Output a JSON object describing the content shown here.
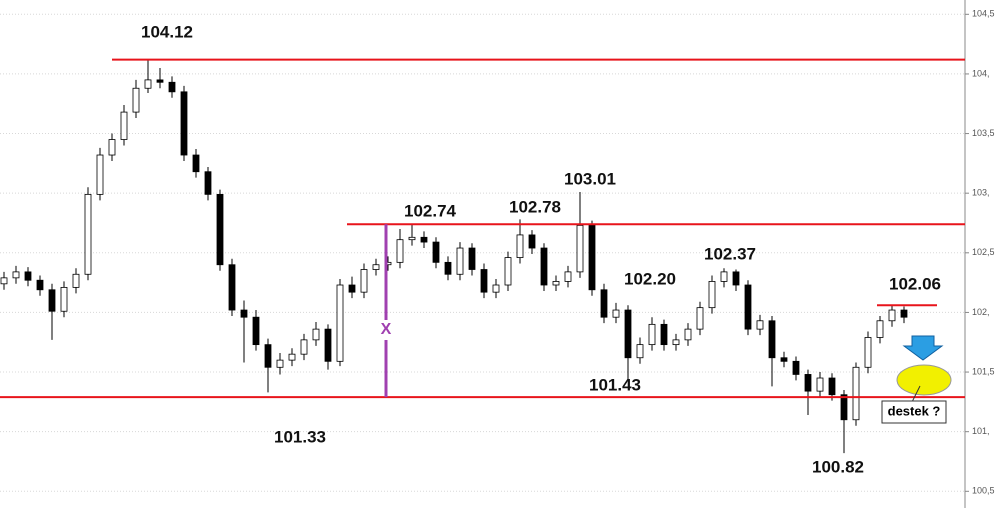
{
  "chart_data": {
    "type": "candlestick",
    "open": [
      102.24,
      102.29,
      102.34,
      102.27,
      102.19,
      102.01,
      102.21,
      102.32,
      102.99,
      103.32,
      103.45,
      103.68,
      103.88,
      103.95,
      103.93,
      103.85,
      103.32,
      103.18,
      102.99,
      102.4,
      102.02,
      101.96,
      101.73,
      101.54,
      101.6,
      101.65,
      101.77,
      101.86,
      101.59,
      102.23,
      102.17,
      102.36,
      102.4,
      102.42,
      102.61,
      102.63,
      102.59,
      102.42,
      102.32,
      102.54,
      102.36,
      102.17,
      102.23,
      102.46,
      102.65,
      102.54,
      102.23,
      102.26,
      102.34,
      102.73,
      102.19,
      101.96,
      102.02,
      101.62,
      101.73,
      101.9,
      101.73,
      101.77,
      101.86,
      102.04,
      102.26,
      102.34,
      102.23,
      101.86,
      101.93,
      101.62,
      101.59,
      101.48,
      101.34,
      101.45,
      101.31,
      101.1,
      101.54,
      101.79,
      101.93,
      102.02
    ],
    "high": [
      102.34,
      102.39,
      102.38,
      102.31,
      102.24,
      102.26,
      102.37,
      103.05,
      103.38,
      103.5,
      103.74,
      103.95,
      104.12,
      104.05,
      103.98,
      103.9,
      103.37,
      103.22,
      103.03,
      102.45,
      102.1,
      102.02,
      101.78,
      101.66,
      101.7,
      101.82,
      101.92,
      101.9,
      102.28,
      102.3,
      102.41,
      102.45,
      102.47,
      102.7,
      102.74,
      102.68,
      102.63,
      102.47,
      102.59,
      102.58,
      102.41,
      102.28,
      102.51,
      102.78,
      102.69,
      102.58,
      102.31,
      102.39,
      103.01,
      102.77,
      102.24,
      102.08,
      102.06,
      101.79,
      101.96,
      101.94,
      101.82,
      101.91,
      102.09,
      102.31,
      102.37,
      102.36,
      102.27,
      101.98,
      101.97,
      101.67,
      101.63,
      101.52,
      101.5,
      101.49,
      101.35,
      101.58,
      101.84,
      101.97,
      102.06,
      102.05
    ],
    "low": [
      102.19,
      102.24,
      102.22,
      102.14,
      101.77,
      101.96,
      102.16,
      102.27,
      102.94,
      103.27,
      103.4,
      103.63,
      103.84,
      103.88,
      103.8,
      103.27,
      103.13,
      102.94,
      102.35,
      101.97,
      101.58,
      101.68,
      101.33,
      101.48,
      101.55,
      101.6,
      101.72,
      101.52,
      101.55,
      102.12,
      102.12,
      102.31,
      102.35,
      102.37,
      102.56,
      102.54,
      102.37,
      102.27,
      102.27,
      102.31,
      102.12,
      102.12,
      102.18,
      102.41,
      102.49,
      102.18,
      102.18,
      102.21,
      102.29,
      102.14,
      101.91,
      101.91,
      101.43,
      101.57,
      101.68,
      101.68,
      101.68,
      101.72,
      101.81,
      101.99,
      102.21,
      102.18,
      101.81,
      101.81,
      101.38,
      101.54,
      101.43,
      101.14,
      101.29,
      101.26,
      100.82,
      101.05,
      101.49,
      101.74,
      101.88,
      101.91
    ],
    "close": [
      102.29,
      102.34,
      102.27,
      102.19,
      102.01,
      102.21,
      102.32,
      102.99,
      103.32,
      103.45,
      103.68,
      103.88,
      103.95,
      103.93,
      103.85,
      103.32,
      103.18,
      102.99,
      102.4,
      102.02,
      101.96,
      101.73,
      101.54,
      101.6,
      101.65,
      101.77,
      101.86,
      101.59,
      102.23,
      102.17,
      102.36,
      102.4,
      102.42,
      102.61,
      102.63,
      102.59,
      102.42,
      102.32,
      102.54,
      102.36,
      102.17,
      102.23,
      102.46,
      102.65,
      102.54,
      102.23,
      102.26,
      102.34,
      102.73,
      102.19,
      101.96,
      102.02,
      101.62,
      101.73,
      101.9,
      101.73,
      101.77,
      101.86,
      102.04,
      102.26,
      102.34,
      102.23,
      101.86,
      101.93,
      101.62,
      101.59,
      101.48,
      101.34,
      101.45,
      101.31,
      101.1,
      101.54,
      101.79,
      101.93,
      102.02,
      101.96
    ],
    "up_color": "#ffffff",
    "down_color": "#000000",
    "ylim": [
      100.36,
      104.62
    ],
    "yticks": [
      {
        "value": 100.5,
        "label": "100,5"
      },
      {
        "value": 101,
        "label": "101,"
      },
      {
        "value": 101.5,
        "label": "101,5"
      },
      {
        "value": 102,
        "label": "102,"
      },
      {
        "value": 102.5,
        "label": "102,5"
      },
      {
        "value": 103,
        "label": "103,"
      },
      {
        "value": 103.5,
        "label": "103,5"
      },
      {
        "value": 104,
        "label": "104,"
      },
      {
        "value": 104.5,
        "label": "104,5"
      }
    ],
    "grid": true,
    "levels": [
      104.12,
      102.74,
      101.29,
      102.06
    ],
    "level_color": "#e8141b",
    "price_labels": [
      "104.12",
      "102.74",
      "102.78",
      "103.01",
      "102.20",
      "102.37",
      "102.06",
      "101.43",
      "101.33",
      "100.82"
    ],
    "marker_label": "X",
    "marker_color": "#a040b0",
    "note": "destek ?"
  }
}
